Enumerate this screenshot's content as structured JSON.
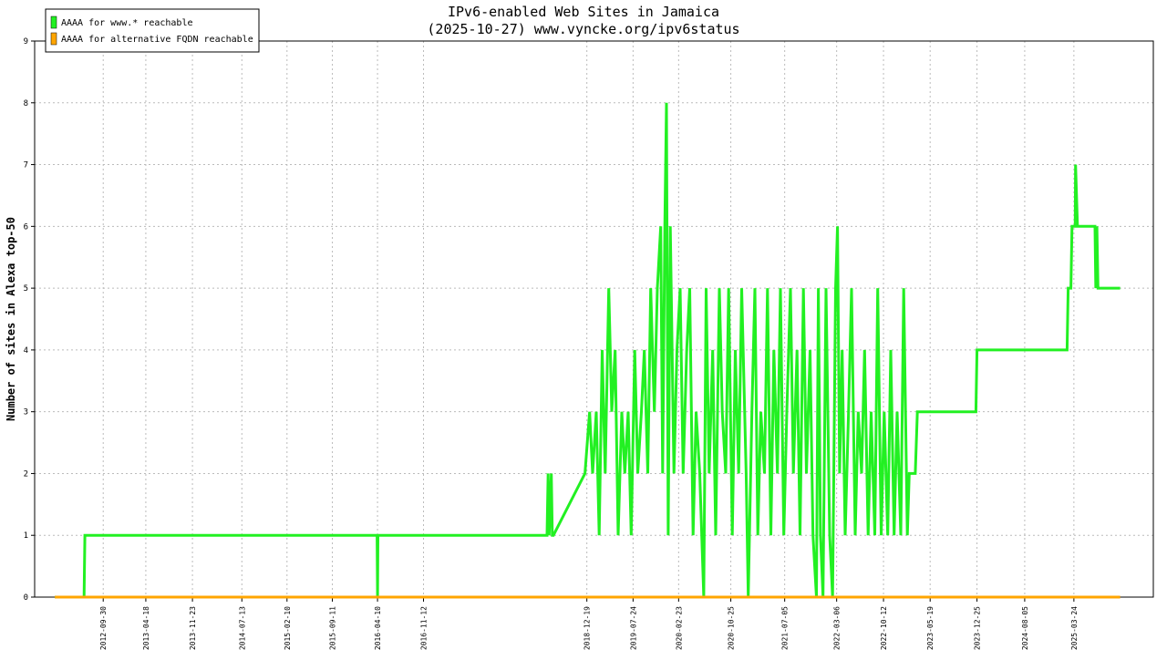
{
  "chart_data": {
    "type": "line",
    "title": "IPv6-enabled Web Sites in Jamaica",
    "subtitle": "(2025-10-27) www.vyncke.org/ipv6status",
    "y_label": "Number of sites in Alexa top-50",
    "legend_position": "top-left",
    "grid": true,
    "xlim": [
      "2011-11-13",
      "2026-04-01"
    ],
    "xticks": [
      "2012-09-30",
      "2013-04-18",
      "2013-11-23",
      "2014-07-13",
      "2015-02-10",
      "2015-09-11",
      "2016-04-10",
      "2016-11-12",
      "2018-12-19",
      "2019-07-24",
      "2020-02-23",
      "2020-10-25",
      "2021-07-05",
      "2022-03-06",
      "2022-10-12",
      "2023-05-19",
      "2023-12-25",
      "2024-08-05",
      "2025-03-24"
    ],
    "ylim": [
      0,
      9
    ],
    "yticks": [
      0,
      1,
      2,
      3,
      4,
      5,
      6,
      7,
      8,
      9
    ],
    "series": [
      {
        "name": "AAAA for www.* reachable",
        "color": "#22f022",
        "x": [
          "2012-02-16",
          "2012-07-02",
          "2012-07-06",
          "2016-04-08",
          "2016-04-10",
          "2016-04-12",
          "2018-06-15",
          "2018-06-20",
          "2018-06-25",
          "2018-07-05",
          "2018-07-10",
          "2018-07-15",
          "2018-12-10",
          "2019-01-01",
          "2019-01-15",
          "2019-02-01",
          "2019-02-15",
          "2019-03-01",
          "2019-03-15",
          "2019-04-01",
          "2019-04-15",
          "2019-05-01",
          "2019-05-15",
          "2019-06-01",
          "2019-06-15",
          "2019-07-01",
          "2019-07-15",
          "2019-08-01",
          "2019-08-15",
          "2019-09-01",
          "2019-09-15",
          "2019-10-01",
          "2019-10-15",
          "2019-11-01",
          "2019-11-15",
          "2019-12-01",
          "2019-12-10",
          "2019-12-20",
          "2019-12-28",
          "2020-01-05",
          "2020-01-15",
          "2020-02-01",
          "2020-02-15",
          "2020-03-01",
          "2020-03-15",
          "2020-04-01",
          "2020-04-15",
          "2020-05-01",
          "2020-05-15",
          "2020-06-01",
          "2020-06-20",
          "2020-07-01",
          "2020-07-15",
          "2020-08-01",
          "2020-08-15",
          "2020-09-01",
          "2020-09-15",
          "2020-10-01",
          "2020-10-15",
          "2020-11-01",
          "2020-11-15",
          "2020-12-01",
          "2020-12-15",
          "2021-01-05",
          "2021-01-15",
          "2021-02-01",
          "2021-02-15",
          "2021-03-01",
          "2021-03-15",
          "2021-04-01",
          "2021-04-15",
          "2021-05-01",
          "2021-05-15",
          "2021-06-01",
          "2021-06-15",
          "2021-07-01",
          "2021-07-15",
          "2021-08-01",
          "2021-08-15",
          "2021-09-01",
          "2021-09-15",
          "2021-10-01",
          "2021-10-15",
          "2021-11-01",
          "2021-11-15",
          "2021-12-01",
          "2021-12-10",
          "2021-12-20",
          "2022-01-01",
          "2022-01-15",
          "2022-02-01",
          "2022-02-15",
          "2022-03-01",
          "2022-03-10",
          "2022-03-20",
          "2022-04-01",
          "2022-04-15",
          "2022-05-01",
          "2022-05-15",
          "2022-06-01",
          "2022-06-15",
          "2022-07-01",
          "2022-07-15",
          "2022-08-01",
          "2022-08-15",
          "2022-09-01",
          "2022-09-15",
          "2022-10-01",
          "2022-10-15",
          "2022-11-01",
          "2022-11-15",
          "2022-12-01",
          "2022-12-15",
          "2023-01-01",
          "2023-01-15",
          "2023-02-01",
          "2023-02-10",
          "2023-03-10",
          "2023-03-20",
          "2023-12-20",
          "2023-12-25",
          "2025-02-20",
          "2025-02-25",
          "2025-03-10",
          "2025-03-15",
          "2025-03-30",
          "2025-04-01",
          "2025-04-10",
          "2025-07-01",
          "2025-07-05",
          "2025-07-10",
          "2025-07-15",
          "2025-10-27"
        ],
        "values": [
          0,
          0,
          1,
          1,
          0,
          1,
          1,
          2,
          1,
          2,
          1,
          1,
          2,
          3,
          2,
          3,
          1,
          4,
          2,
          5,
          3,
          4,
          1,
          3,
          2,
          3,
          1,
          4,
          2,
          3,
          4,
          2,
          5,
          3,
          5,
          6,
          2,
          6,
          8,
          1,
          6,
          2,
          4,
          5,
          2,
          4,
          5,
          1,
          3,
          2,
          0,
          5,
          2,
          4,
          1,
          5,
          3,
          2,
          5,
          1,
          4,
          2,
          5,
          2,
          0,
          3,
          5,
          1,
          3,
          2,
          5,
          1,
          4,
          2,
          5,
          1,
          3,
          5,
          2,
          4,
          1,
          5,
          2,
          4,
          1,
          0,
          5,
          1,
          0,
          5,
          1,
          0,
          5,
          6,
          2,
          4,
          1,
          3,
          5,
          1,
          3,
          2,
          4,
          1,
          3,
          1,
          5,
          1,
          3,
          1,
          4,
          1,
          3,
          1,
          5,
          1,
          2,
          2,
          3,
          3,
          4,
          4,
          5,
          5,
          6,
          6,
          7,
          6,
          6,
          5,
          6,
          5,
          5
        ]
      },
      {
        "name": "AAAA for alternative FQDN reachable",
        "color": "#ffa500",
        "x": [
          "2012-02-16",
          "2025-10-27"
        ],
        "values": [
          0,
          0
        ]
      }
    ]
  }
}
